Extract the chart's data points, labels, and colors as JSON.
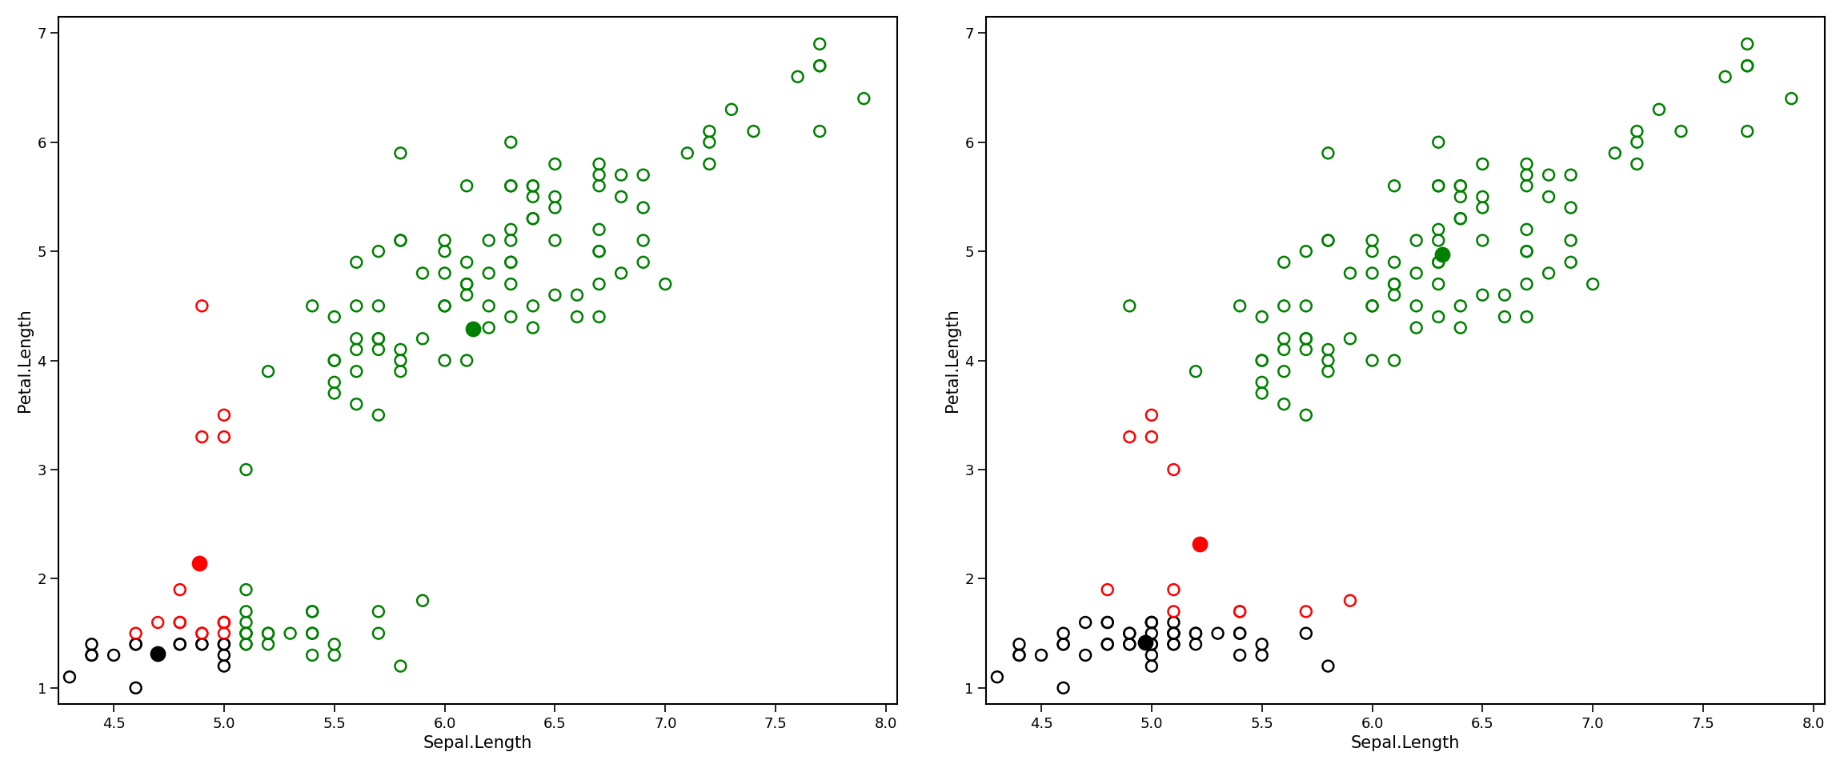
{
  "sepal_length": [
    5.1,
    4.9,
    4.7,
    4.6,
    5.0,
    5.4,
    4.6,
    5.0,
    4.4,
    4.9,
    5.4,
    4.8,
    4.8,
    4.3,
    5.8,
    5.7,
    5.4,
    5.1,
    5.7,
    5.1,
    5.4,
    5.1,
    4.6,
    5.1,
    4.8,
    5.0,
    5.0,
    5.2,
    5.2,
    4.7,
    4.8,
    5.4,
    5.2,
    5.5,
    4.9,
    5.0,
    5.5,
    4.9,
    4.4,
    5.1,
    5.0,
    4.5,
    4.4,
    5.0,
    5.1,
    4.8,
    5.1,
    4.6,
    5.3,
    5.0,
    7.0,
    6.4,
    6.9,
    5.5,
    6.5,
    5.7,
    6.3,
    4.9,
    6.6,
    5.2,
    5.0,
    5.9,
    6.0,
    6.1,
    5.6,
    6.7,
    5.6,
    5.8,
    6.2,
    5.6,
    5.9,
    6.1,
    6.3,
    6.1,
    6.4,
    6.6,
    6.8,
    6.7,
    6.0,
    5.7,
    5.5,
    5.5,
    5.8,
    6.0,
    5.4,
    6.0,
    6.7,
    6.3,
    5.6,
    5.5,
    5.5,
    6.1,
    5.8,
    5.0,
    5.6,
    5.7,
    5.7,
    6.2,
    5.1,
    5.7,
    6.3,
    5.8,
    7.1,
    6.3,
    6.5,
    7.6,
    4.9,
    7.3,
    6.7,
    7.2,
    6.5,
    6.4,
    6.8,
    5.7,
    5.8,
    6.4,
    6.5,
    7.7,
    7.7,
    6.0,
    6.9,
    5.6,
    7.7,
    6.3,
    6.7,
    7.2,
    6.2,
    6.1,
    6.4,
    7.2,
    7.4,
    7.9,
    6.4,
    6.3,
    6.1,
    7.7,
    6.3,
    6.4,
    6.0,
    6.9,
    6.7,
    6.9,
    5.8,
    6.8,
    6.7,
    6.7,
    6.3,
    6.5,
    6.2,
    5.9
  ],
  "petal_length": [
    1.4,
    1.4,
    1.3,
    1.5,
    1.4,
    1.7,
    1.4,
    1.5,
    1.4,
    1.5,
    1.5,
    1.6,
    1.4,
    1.1,
    1.2,
    1.5,
    1.3,
    1.4,
    1.7,
    1.5,
    1.7,
    1.5,
    1.0,
    1.7,
    1.9,
    1.6,
    1.6,
    1.5,
    1.4,
    1.6,
    1.6,
    1.5,
    1.5,
    1.4,
    1.5,
    1.2,
    1.3,
    1.4,
    1.3,
    1.5,
    1.3,
    1.3,
    1.3,
    1.6,
    1.9,
    1.4,
    1.6,
    1.4,
    1.5,
    1.4,
    4.7,
    4.5,
    4.9,
    4.0,
    4.6,
    4.5,
    4.7,
    3.3,
    4.6,
    3.9,
    3.5,
    4.2,
    4.0,
    4.7,
    3.6,
    4.4,
    4.5,
    4.1,
    4.5,
    3.9,
    4.8,
    4.0,
    4.9,
    4.7,
    4.3,
    4.4,
    4.8,
    5.0,
    4.5,
    3.5,
    3.8,
    3.7,
    3.9,
    5.1,
    4.5,
    4.5,
    4.7,
    4.4,
    4.1,
    4.0,
    4.4,
    4.6,
    4.0,
    3.3,
    4.2,
    4.2,
    4.2,
    4.3,
    3.0,
    4.1,
    6.0,
    5.1,
    5.9,
    5.6,
    5.8,
    6.6,
    4.5,
    6.3,
    5.8,
    6.1,
    5.1,
    5.3,
    5.5,
    5.0,
    5.1,
    5.3,
    5.5,
    6.7,
    6.9,
    5.0,
    5.7,
    4.9,
    6.7,
    4.9,
    5.7,
    6.0,
    4.8,
    4.9,
    5.6,
    5.8,
    6.1,
    6.4,
    5.6,
    5.1,
    5.6,
    6.1,
    5.6,
    5.5,
    4.8,
    5.4,
    5.6,
    5.1,
    5.9,
    5.7,
    5.2,
    5.0,
    5.2,
    5.4,
    5.1,
    1.8
  ],
  "xlabel": "Sepal.Length",
  "ylabel": "Petal.Length",
  "xlim": [
    4.25,
    8.05
  ],
  "ylim": [
    0.85,
    7.15
  ],
  "bg_color": "#ffffff",
  "colors": [
    "black",
    "red",
    "green"
  ]
}
